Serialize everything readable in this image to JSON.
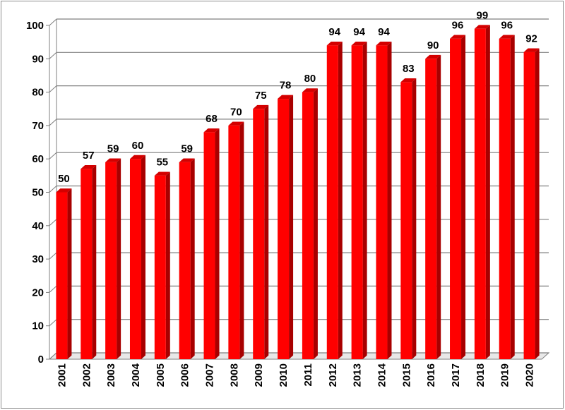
{
  "chart_data": {
    "type": "bar",
    "categories": [
      "2001",
      "2002",
      "2003",
      "2004",
      "2005",
      "2006",
      "2007",
      "2008",
      "2009",
      "2010",
      "2011",
      "2012",
      "2013",
      "2014",
      "2015",
      "2016",
      "2017",
      "2018",
      "2019",
      "2020"
    ],
    "values": [
      50,
      57,
      59,
      60,
      55,
      59,
      68,
      70,
      75,
      78,
      80,
      94,
      94,
      94,
      83,
      90,
      96,
      99,
      96,
      92
    ],
    "data_labels": [
      "50",
      "57",
      "59",
      "60",
      "55",
      "59",
      "68",
      "70",
      "75",
      "78",
      "80",
      "94",
      "94",
      "94",
      "83",
      "90",
      "96",
      "99",
      "96",
      "92"
    ],
    "ylim": [
      0,
      100
    ],
    "yticks": [
      "0",
      "10",
      "20",
      "30",
      "40",
      "50",
      "60",
      "70",
      "80",
      "90",
      "100"
    ],
    "grid": true,
    "bar_color": "#ff0000",
    "bar_side_color": "#a80000",
    "bar_top_color": "#d40000",
    "title": "",
    "xlabel": "",
    "ylabel": ""
  }
}
